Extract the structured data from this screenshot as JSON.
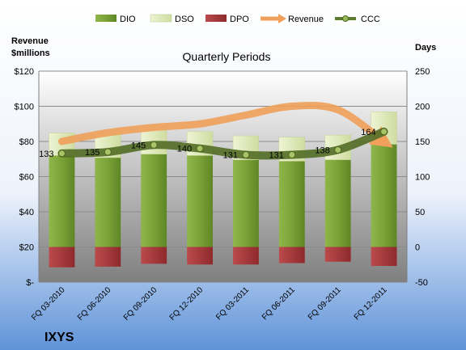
{
  "chart_data": {
    "type": "bar",
    "title": "Quarterly Periods",
    "left_axis_label": [
      "Revenue",
      "$millions"
    ],
    "right_axis_label": "Days",
    "brand": "IXYS",
    "categories": [
      "FQ 03-2010",
      "FQ 06-2010",
      "FQ 09-2010",
      "FQ 12-2010",
      "FQ 03-2011",
      "FQ 06-2011",
      "FQ 09-2011",
      "FQ 12-2011"
    ],
    "left_ylim": [
      0,
      120
    ],
    "left_ticks": [
      "$-",
      "$20",
      "$40",
      "$60",
      "$80",
      "$100",
      "$120"
    ],
    "right_ylim": [
      -50,
      250
    ],
    "right_ticks": [
      -50,
      0,
      50,
      100,
      150,
      200,
      250
    ],
    "legend": [
      "DIO",
      "DSO",
      "DPO",
      "Revenue",
      "CCC"
    ],
    "legend_placement": "top",
    "colors": {
      "DIO": "#7ea33a",
      "DSO": "#dce8b4",
      "DPO": "#a83a3c",
      "Revenue": "#f0a05a",
      "CCC": "#5e7d2c"
    },
    "series": [
      {
        "name": "DIO",
        "axis": "right",
        "values": [
          130,
          127,
          132,
          130,
          124,
          122,
          124,
          146
        ]
      },
      {
        "name": "DSO",
        "axis": "right",
        "values": [
          32,
          34,
          34,
          34,
          34,
          34,
          35,
          46
        ]
      },
      {
        "name": "DPO",
        "axis": "right",
        "values": [
          -29,
          -28,
          -24,
          -25,
          -25,
          -23,
          -21,
          -27
        ]
      },
      {
        "name": "Revenue",
        "axis": "left",
        "values": [
          80,
          85,
          88,
          90,
          95,
          100,
          98,
          80
        ]
      },
      {
        "name": "CCC",
        "axis": "right",
        "values": [
          133,
          135,
          145,
          140,
          131,
          131,
          138,
          164
        ]
      }
    ],
    "data_labels": [
      "133",
      "135",
      "145",
      "140",
      "131",
      "131",
      "138",
      "164"
    ]
  }
}
